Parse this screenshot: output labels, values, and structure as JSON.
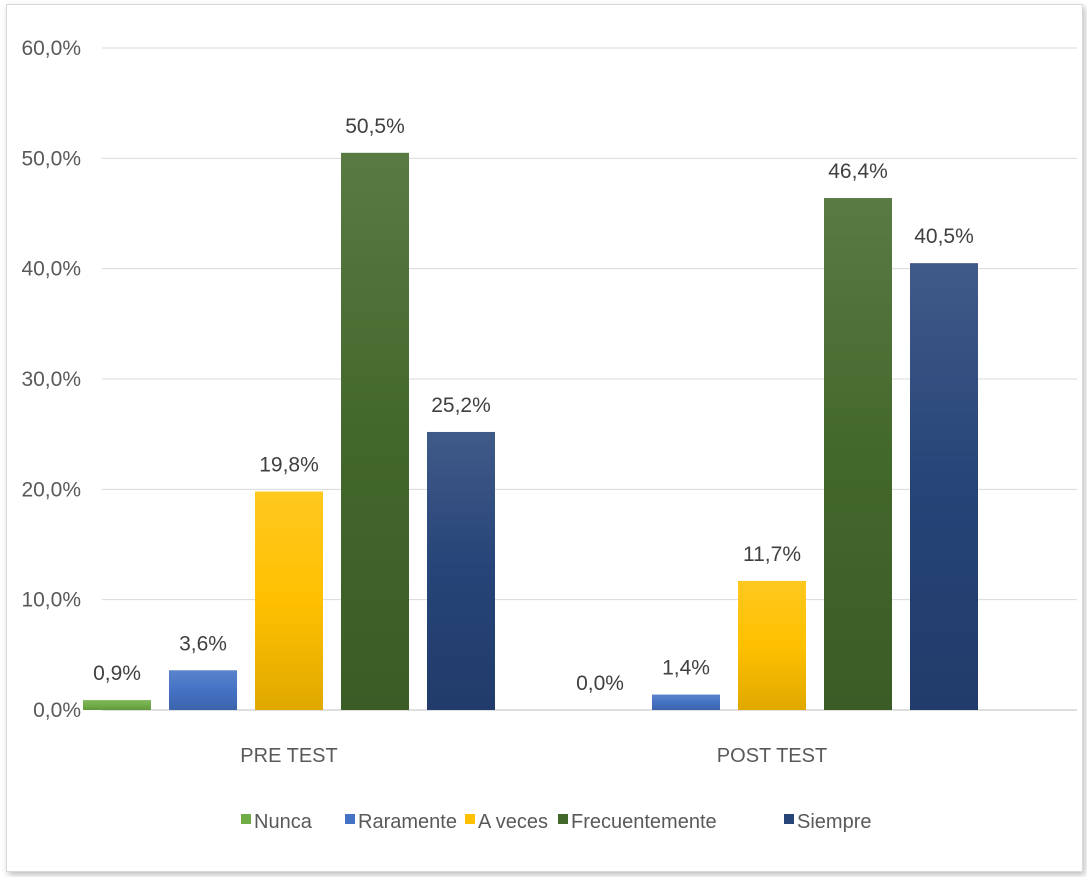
{
  "chart_data": {
    "type": "bar",
    "categories": [
      "PRE TEST",
      "POST TEST"
    ],
    "series": [
      {
        "name": "Nunca",
        "values": [
          0.9,
          0.0
        ],
        "labels": [
          "0,9%",
          "0,0%"
        ],
        "color": "#70ad47"
      },
      {
        "name": "Raramente",
        "values": [
          3.6,
          1.4
        ],
        "labels": [
          "3,6%",
          "1,4%"
        ],
        "color": "#4472c4"
      },
      {
        "name": "A veces",
        "values": [
          19.8,
          11.7
        ],
        "labels": [
          "19,8%",
          "11,7%"
        ],
        "color": "#ffc000"
      },
      {
        "name": "Frecuentemente",
        "values": [
          50.5,
          46.4
        ],
        "labels": [
          "50,5%",
          "46,4%"
        ],
        "color": "#43682b"
      },
      {
        "name": "Siempre",
        "values": [
          25.2,
          40.5
        ],
        "labels": [
          "25,2%",
          "40,5%"
        ],
        "color": "#264478"
      }
    ],
    "ylim": [
      0,
      60
    ],
    "yticks": [
      0,
      10,
      20,
      30,
      40,
      50,
      60
    ],
    "ytick_labels": [
      "0,0%",
      "10,0%",
      "20,0%",
      "30,0%",
      "40,0%",
      "50,0%",
      "60,0%"
    ],
    "grid": true,
    "legend": "bottom",
    "title": "",
    "xlabel": "",
    "ylabel": ""
  }
}
